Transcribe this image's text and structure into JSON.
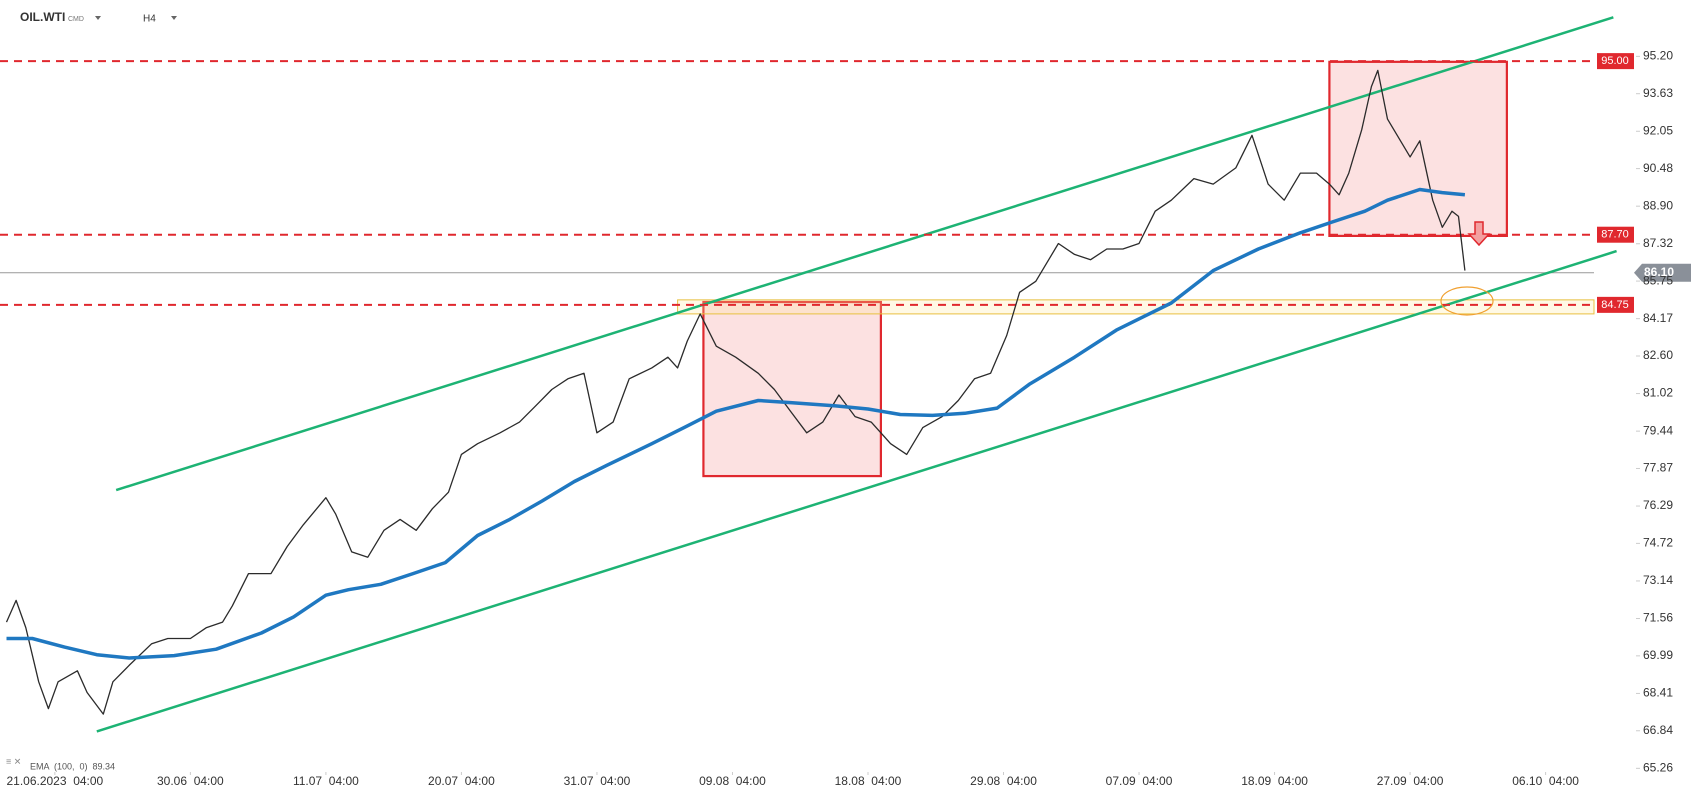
{
  "header": {
    "symbol": "OIL.WTI",
    "market": "CMD",
    "interval": "H4"
  },
  "chart_data": {
    "type": "line",
    "series": [
      {
        "color": "#2b2b2b",
        "x": [
          2,
          5,
          8,
          12,
          15,
          18,
          24,
          27,
          32,
          35,
          40,
          47,
          52,
          59,
          64,
          69,
          72,
          77,
          84,
          89,
          94,
          101,
          104,
          109,
          114,
          119,
          124,
          129,
          134,
          139,
          143,
          148,
          155,
          161,
          166,
          171,
          176,
          181,
          185,
          190,
          195,
          202,
          207,
          210,
          213,
          217,
          222,
          228,
          235,
          240,
          245,
          250,
          255,
          260,
          265,
          270,
          276,
          281,
          286,
          292,
          297,
          302,
          307,
          312,
          316,
          321,
          328,
          333,
          338,
          343,
          348,
          353,
          358,
          363,
          370,
          376,
          383,
          388,
          393,
          398,
          403,
          408,
          412,
          415,
          418,
          422,
          425,
          427,
          430,
          433,
          437,
          440,
          444,
          447,
          450,
          452,
          454
        ],
        "values": [
          71.41,
          72.32,
          71.18,
          68.9,
          67.77,
          68.9,
          69.36,
          68.45,
          67.54,
          68.9,
          69.59,
          70.5,
          70.72,
          70.72,
          71.18,
          71.41,
          72.09,
          73.45,
          73.45,
          74.59,
          75.5,
          76.64,
          75.96,
          74.36,
          74.14,
          75.27,
          75.73,
          75.27,
          76.18,
          76.87,
          78.46,
          78.91,
          79.37,
          79.82,
          80.5,
          81.19,
          81.64,
          81.87,
          79.37,
          79.82,
          81.64,
          82.1,
          82.55,
          82.1,
          83.23,
          84.37,
          83.01,
          82.55,
          81.87,
          81.19,
          80.28,
          79.37,
          79.82,
          80.96,
          80.05,
          79.82,
          78.91,
          78.46,
          79.59,
          80.05,
          80.73,
          81.64,
          81.87,
          83.46,
          85.28,
          85.74,
          87.33,
          86.87,
          86.65,
          87.1,
          87.1,
          87.33,
          88.69,
          89.15,
          90.06,
          89.83,
          90.51,
          91.88,
          89.83,
          89.15,
          90.29,
          90.29,
          89.83,
          89.38,
          90.29,
          92.11,
          93.93,
          94.61,
          92.56,
          91.88,
          90.97,
          91.65,
          89.15,
          88.01,
          88.69,
          88.47,
          86.19
        ]
      },
      {
        "color": "#1f78c1",
        "x": [
          2,
          10,
          20,
          30,
          40,
          54,
          67,
          81,
          91,
          101,
          108,
          118,
          128,
          138,
          148,
          158,
          168,
          178,
          188,
          202,
          212,
          222,
          235,
          245,
          259,
          269,
          279,
          289,
          299,
          309,
          319,
          333,
          346,
          363,
          376,
          390,
          403,
          413,
          423,
          430,
          440,
          447,
          454
        ],
        "values": [
          70.72,
          70.72,
          70.36,
          70.04,
          69.9,
          70.0,
          70.27,
          70.95,
          71.63,
          72.54,
          72.77,
          73.0,
          73.45,
          73.91,
          75.05,
          75.73,
          76.5,
          77.32,
          78.0,
          78.91,
          79.59,
          80.28,
          80.73,
          80.64,
          80.5,
          80.37,
          80.14,
          80.1,
          80.19,
          80.41,
          81.41,
          82.55,
          83.69,
          84.83,
          86.19,
          87.1,
          87.78,
          88.24,
          88.69,
          89.15,
          89.6,
          89.47,
          89.38
        ]
      }
    ],
    "indicator_label": "EMA  (100,  0)  89.34",
    "xlim": [
      0,
      494
    ],
    "xticks": [
      {
        "value": 17,
        "label": "21.06.2023  04:00"
      },
      {
        "value": 59,
        "label": "30.06  04:00"
      },
      {
        "value": 101,
        "label": "11.07  04:00"
      },
      {
        "value": 143,
        "label": "20.07  04:00"
      },
      {
        "value": 185,
        "label": "31.07  04:00"
      },
      {
        "value": 227,
        "label": "09.08  04:00"
      },
      {
        "value": 269,
        "label": "18.08  04:00"
      },
      {
        "value": 311,
        "label": "29.08  04:00"
      },
      {
        "value": 353,
        "label": "07.09  04:00"
      },
      {
        "value": 395,
        "label": "18.09  04:00"
      },
      {
        "value": 437,
        "label": "27.09  04:00"
      },
      {
        "value": 479,
        "label": "06.10  04:00"
      }
    ],
    "ylim": [
      65.19,
      97.57
    ],
    "yticks": [
      {
        "value": 95.2,
        "label": "95.20"
      },
      {
        "value": 93.63,
        "label": "93.63"
      },
      {
        "value": 92.05,
        "label": "92.05"
      },
      {
        "value": 90.48,
        "label": "90.48"
      },
      {
        "value": 88.9,
        "label": "88.90"
      },
      {
        "value": 87.32,
        "label": "87.32"
      },
      {
        "value": 85.75,
        "label": "85.75"
      },
      {
        "value": 84.17,
        "label": "84.17"
      },
      {
        "value": 82.6,
        "label": "82.60"
      },
      {
        "value": 81.02,
        "label": "81.02"
      },
      {
        "value": 79.44,
        "label": "79.44"
      },
      {
        "value": 77.87,
        "label": "77.87"
      },
      {
        "value": 76.29,
        "label": "76.29"
      },
      {
        "value": 74.72,
        "label": "74.72"
      },
      {
        "value": 73.14,
        "label": "73.14"
      },
      {
        "value": 71.56,
        "label": "71.56"
      },
      {
        "value": 69.99,
        "label": "69.99"
      },
      {
        "value": 68.41,
        "label": "68.41"
      },
      {
        "value": 66.84,
        "label": "66.84"
      },
      {
        "value": 65.26,
        "label": "65.26"
      }
    ],
    "levels": [
      {
        "value": 95.0,
        "label": "95.00"
      },
      {
        "value": 87.7,
        "label": "87.70"
      },
      {
        "value": 84.75,
        "label": "84.75"
      }
    ],
    "level_color": "#e0282e",
    "last_price": {
      "value": 86.1,
      "label": "86.10"
    },
    "channels": [
      {
        "x": [
          36,
          500
        ],
        "values": [
          76.96,
          96.84
        ]
      },
      {
        "x": [
          30,
          501
        ],
        "values": [
          66.81,
          87.01
        ]
      }
    ],
    "channel_color": "#1db374",
    "zones": [
      {
        "x": [
          218,
          273
        ],
        "values": [
          84.87,
          77.55
        ]
      },
      {
        "x": [
          412,
          467
        ],
        "values": [
          94.97,
          87.65
        ]
      }
    ],
    "band": {
      "x": [
        210,
        494
      ],
      "values": [
        84.96,
        84.37
      ]
    }
  }
}
